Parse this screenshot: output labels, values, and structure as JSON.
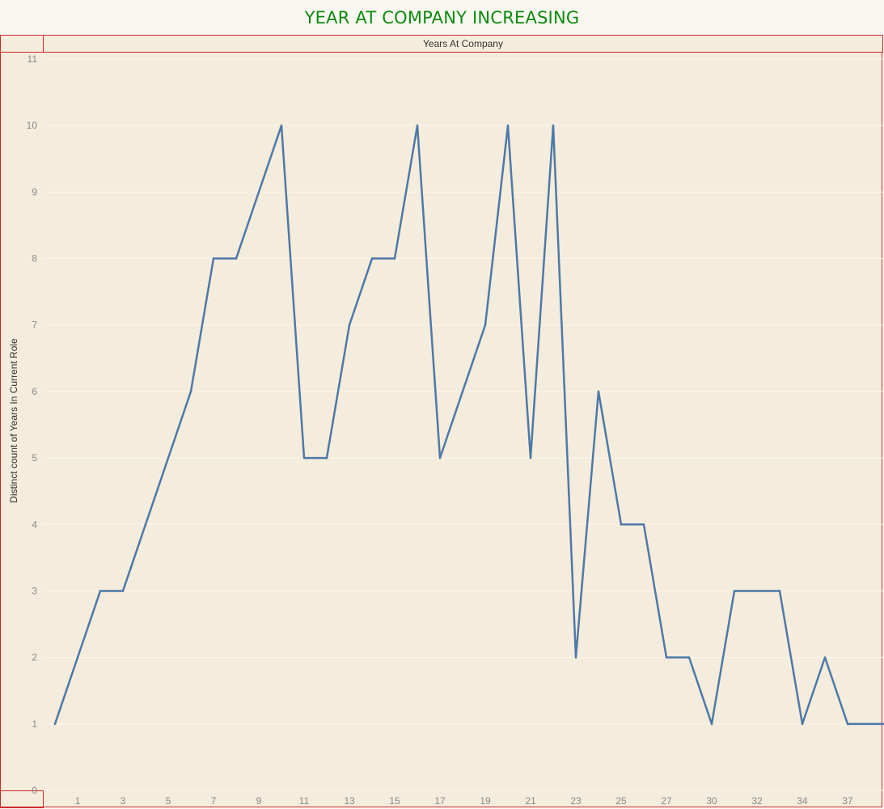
{
  "title": "YEAR AT COMPANY INCREASING",
  "colors": {
    "title": "#0d8a10",
    "line": "#4e79a7",
    "border": "#cc2b2b",
    "plot_bg": "#f4ecdc"
  },
  "chart_data": {
    "type": "line",
    "title": "YEAR AT COMPANY INCREASING",
    "header": "Years At Company",
    "xlabel": "",
    "ylabel": "Distinct count of Years In Current Role",
    "x": [
      0,
      1,
      2,
      3,
      4,
      5,
      6,
      7,
      8,
      9,
      10,
      11,
      12,
      13,
      14,
      15,
      16,
      17,
      18,
      19,
      20,
      21,
      22,
      23,
      24,
      25,
      26,
      27,
      29,
      30,
      31,
      32,
      33,
      34,
      35,
      36,
      37,
      40
    ],
    "x_tick_labels": [
      "1",
      "3",
      "5",
      "7",
      "9",
      "11",
      "13",
      "15",
      "17",
      "19",
      "21",
      "23",
      "25",
      "27",
      "30",
      "32",
      "34",
      "37"
    ],
    "series": [
      {
        "values": [
          1,
          2,
          3,
          3,
          4,
          5,
          6,
          8,
          8,
          9,
          10,
          5,
          5,
          7,
          8,
          8,
          10,
          5,
          6,
          7,
          10,
          5,
          10,
          2,
          6,
          4,
          4,
          2,
          2,
          1,
          3,
          3,
          3,
          1,
          2,
          1,
          1,
          1
        ]
      }
    ],
    "ylim": [
      0,
      11
    ],
    "y_ticks": [
      0,
      1,
      2,
      3,
      4,
      5,
      6,
      7,
      8,
      9,
      10,
      11
    ],
    "grid": true
  }
}
